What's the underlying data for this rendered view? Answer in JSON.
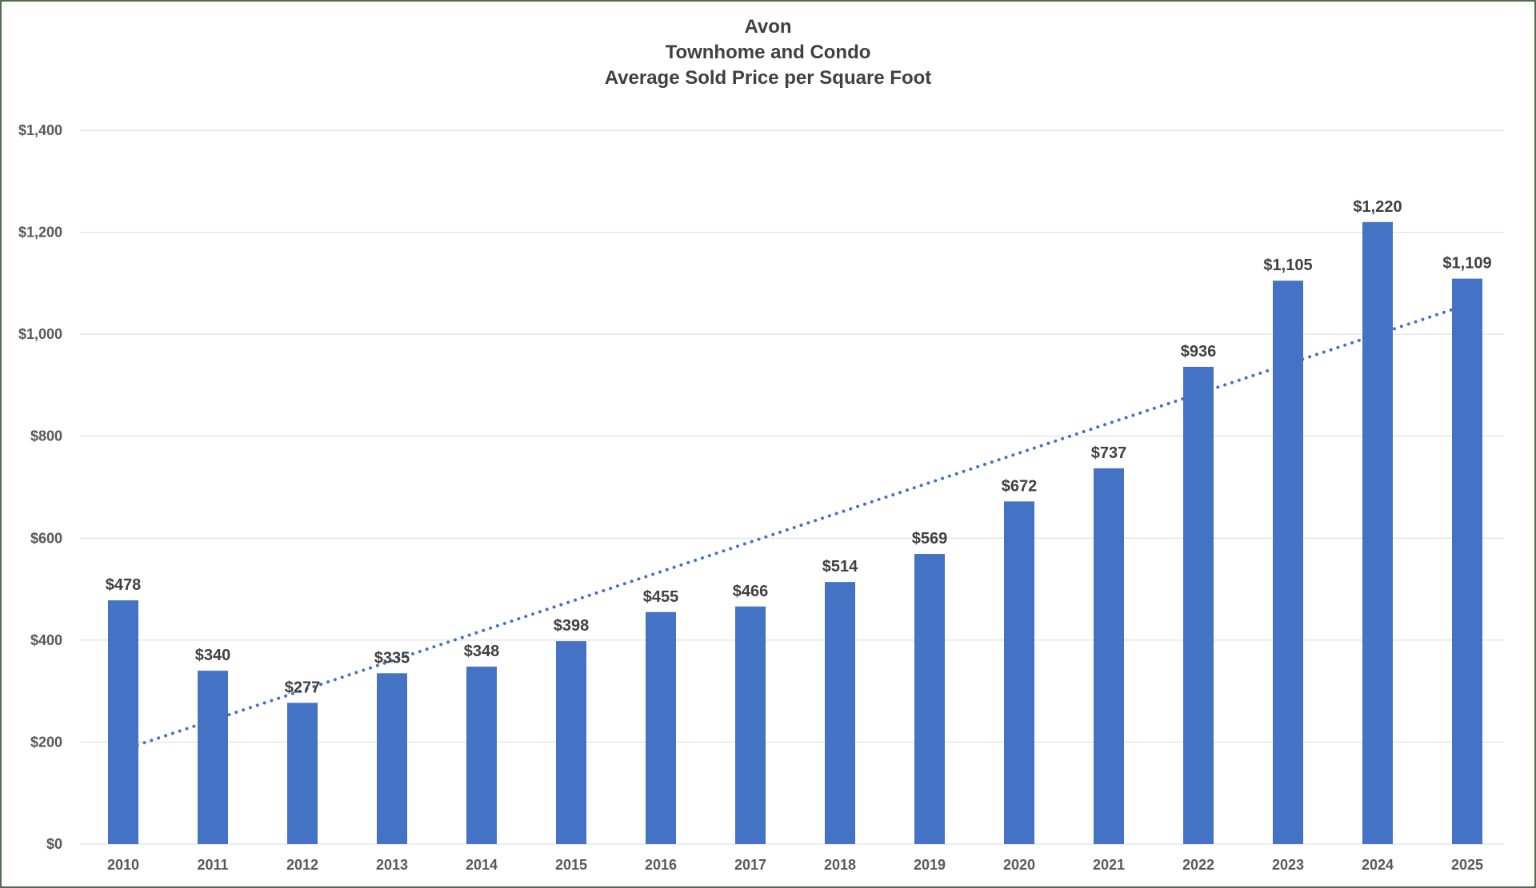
{
  "chart_data": {
    "type": "bar",
    "title_lines": [
      "Avon",
      "Townhome and Condo",
      "Average Sold Price per Square Foot"
    ],
    "categories": [
      "2010",
      "2011",
      "2012",
      "2013",
      "2014",
      "2015",
      "2016",
      "2017",
      "2018",
      "2019",
      "2020",
      "2021",
      "2022",
      "2023",
      "2024",
      "2025"
    ],
    "values": [
      478,
      340,
      277,
      335,
      348,
      398,
      455,
      466,
      514,
      569,
      672,
      737,
      936,
      1105,
      1220,
      1109
    ],
    "value_labels": [
      "$478",
      "$340",
      "$277",
      "$335",
      "$348",
      "$398",
      "$455",
      "$466",
      "$514",
      "$569",
      "$672",
      "$737",
      "$936",
      "$1,105",
      "$1,220",
      "$1,109"
    ],
    "xlabel": "",
    "ylabel": "",
    "ylim": [
      0,
      1400
    ],
    "yticks": [
      0,
      200,
      400,
      600,
      800,
      1000,
      1200,
      1400
    ],
    "ytick_labels": [
      "$0",
      "$200",
      "$400",
      "$600",
      "$800",
      "$1,000",
      "$1,200",
      "$1,400"
    ],
    "grid": true,
    "legend": "none",
    "trendline": {
      "style": "dotted",
      "start_value": 185,
      "end_value": 1058
    },
    "colors": {
      "bar": "#4472C4",
      "trendline": "#4472C4",
      "gridline": "#D9D9D9",
      "axis_label": "#595959",
      "data_label": "#404040",
      "title": "#404040",
      "frame_border": "#556E50",
      "background": "#FFFFFF"
    }
  }
}
